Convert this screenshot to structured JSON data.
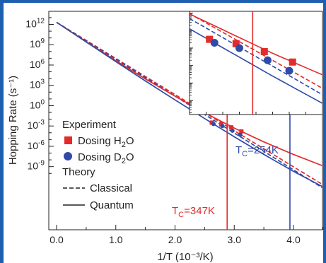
{
  "chart_data": {
    "type": "scatter",
    "xlabel": "1/T (10⁻³/K)",
    "ylabel": "Hopping Rate (s⁻¹)",
    "x_ticks": [
      "0.0",
      "1.0",
      "2.0",
      "3.0",
      "4.0"
    ],
    "y_tick_exponents": [
      "12",
      "9",
      "6",
      "3",
      "0",
      "-3",
      "-6",
      "-9"
    ],
    "xlim": [
      0,
      4.5
    ],
    "ylim_log10": [
      -10.5,
      13.5
    ],
    "colors": {
      "h2o": "#e32b2b",
      "d2o": "#2f4aa8",
      "frame": "#1f5fb0"
    },
    "legend": {
      "experiment_title": "Experiment",
      "h2o_pre": "Dosing H",
      "h2o_sub": "2",
      "h2o_post": "O",
      "d2o_pre": "Dosing D",
      "d2o_sub": "2",
      "d2o_post": "O",
      "theory_title": "Theory",
      "classical": "Classical",
      "quantum": "Quantum"
    },
    "annotations": {
      "tc_h2o": {
        "T": "T",
        "sub": "C",
        "text": "=347K",
        "x": 2.88
      },
      "tc_d2o": {
        "T": "T",
        "sub": "C",
        "text": "=254K",
        "x": 3.94
      }
    },
    "series": [
      {
        "name": "Dosing H2O",
        "kind": "points",
        "color": "#e32b2b",
        "marker": "square",
        "x": [
          2.62,
          2.78,
          2.95,
          3.12
        ],
        "y_log10": [
          -2.5,
          -2.75,
          -3.2,
          -3.8
        ]
      },
      {
        "name": "Dosing D2O",
        "kind": "points",
        "color": "#2f4aa8",
        "marker": "circle",
        "x": [
          2.65,
          2.8,
          2.97,
          3.1
        ],
        "y_log10": [
          -2.7,
          -3.0,
          -3.7,
          -4.3
        ]
      },
      {
        "name": "Classical H2O",
        "kind": "line",
        "style": "dashed",
        "color": "#e32b2b",
        "x": [
          0,
          4.5
        ],
        "y_log10": [
          12.3,
          -11.7
        ]
      },
      {
        "name": "Classical D2O",
        "kind": "line",
        "style": "dashed",
        "color": "#2f4aa8",
        "x": [
          0,
          4.5
        ],
        "y_log10": [
          12.3,
          -12.2
        ]
      },
      {
        "name": "Quantum H2O",
        "kind": "line",
        "style": "solid",
        "color": "#e32b2b",
        "x": [
          0,
          0.5,
          1.0,
          1.5,
          2.0,
          2.5,
          3.0,
          3.5,
          4.0,
          4.5
        ],
        "y_log10": [
          12.3,
          9.45,
          6.65,
          3.95,
          1.4,
          -1.05,
          -3.3,
          -5.35,
          -7.2,
          -8.9
        ]
      },
      {
        "name": "Quantum D2O",
        "kind": "line",
        "style": "solid",
        "color": "#2f4aa8",
        "x": [
          0,
          0.5,
          1.0,
          1.5,
          2.0,
          2.5,
          3.0,
          3.5,
          4.0,
          4.5
        ],
        "y_log10": [
          12.3,
          9.4,
          6.5,
          3.65,
          0.85,
          -1.9,
          -4.6,
          -7.2,
          -9.7,
          -12.0
        ]
      }
    ],
    "inset": {
      "xlim": [
        2.5,
        3.3
      ],
      "ylim_log10": [
        -6.8,
        -0.9
      ],
      "h2o_points": {
        "x": [
          2.62,
          2.78,
          2.95,
          3.12
        ],
        "y_log10": [
          -2.5,
          -2.75,
          -3.2,
          -3.8
        ]
      },
      "d2o_points": {
        "x": [
          2.65,
          2.8,
          2.97,
          3.1
        ],
        "y_log10": [
          -2.7,
          -3.0,
          -3.7,
          -4.3
        ]
      },
      "tc_h2o_x": 2.88
    }
  }
}
